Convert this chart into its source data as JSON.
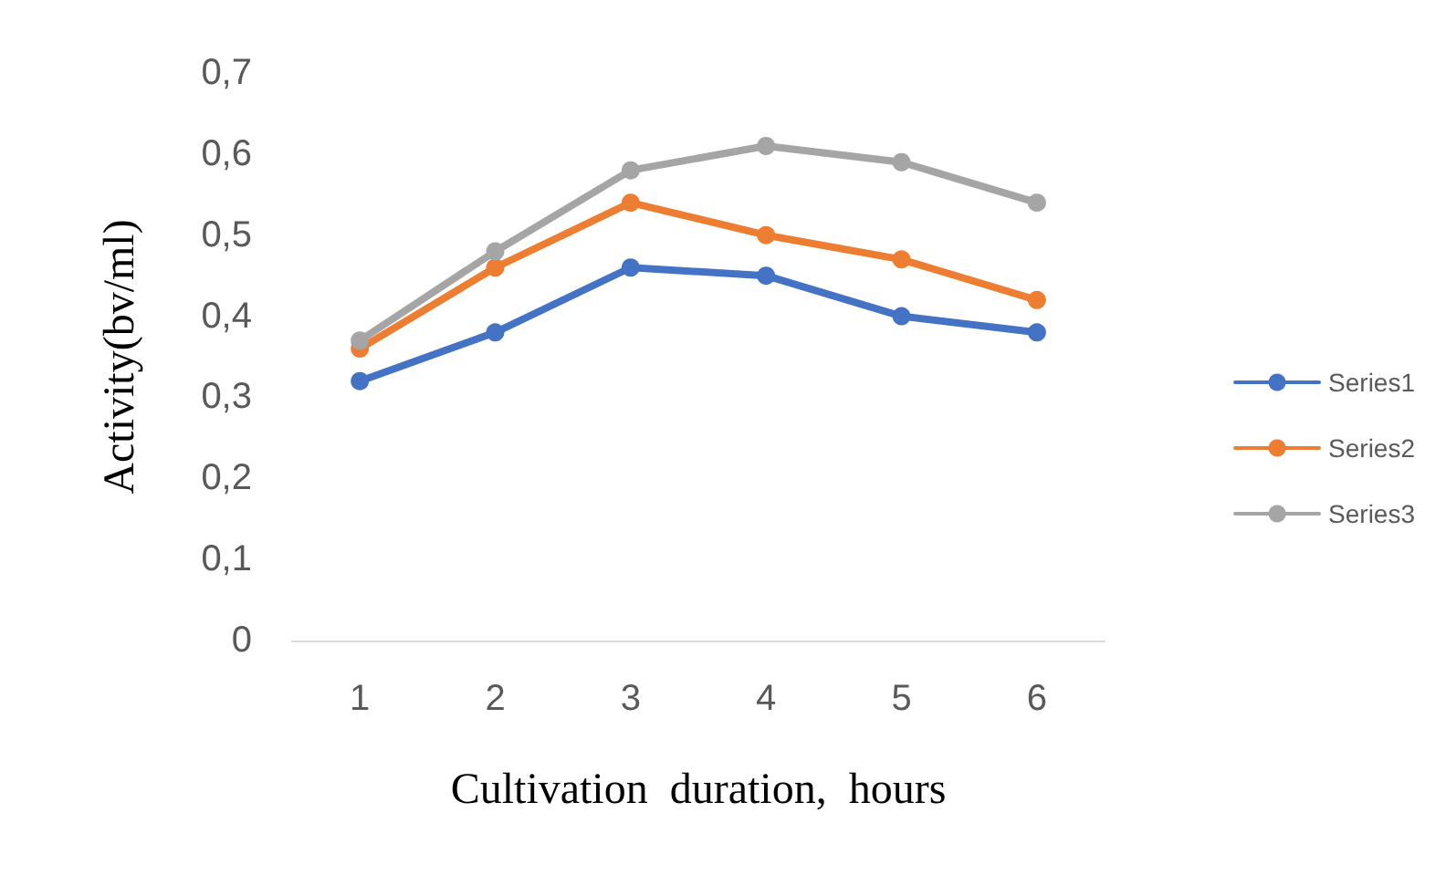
{
  "chart_data": {
    "type": "line",
    "xlabel": "Cultivation  duration,  hours",
    "ylabel": "Activity(bv/ml)",
    "categories": [
      "1",
      "2",
      "3",
      "4",
      "5",
      "6"
    ],
    "series": [
      {
        "name": "Series1",
        "color": "#4472c4",
        "values": [
          0.32,
          0.38,
          0.46,
          0.45,
          0.4,
          0.38
        ]
      },
      {
        "name": "Series2",
        "color": "#ed7d31",
        "values": [
          0.36,
          0.46,
          0.54,
          0.5,
          0.47,
          0.42
        ]
      },
      {
        "name": "Series3",
        "color": "#a5a5a5",
        "values": [
          0.37,
          0.48,
          0.58,
          0.61,
          0.59,
          0.54
        ]
      }
    ],
    "ylim": [
      0,
      0.7
    ],
    "yticks": [
      {
        "value": 0,
        "label": "0"
      },
      {
        "value": 0.1,
        "label": "0,1"
      },
      {
        "value": 0.2,
        "label": "0,2"
      },
      {
        "value": 0.3,
        "label": "0,3"
      },
      {
        "value": 0.4,
        "label": "0,4"
      },
      {
        "value": 0.5,
        "label": "0,5"
      },
      {
        "value": 0.6,
        "label": "0,6"
      },
      {
        "value": 0.7,
        "label": "0,7"
      }
    ],
    "grid": false,
    "legend": "right",
    "marker": "circle",
    "line_style": "solid"
  }
}
